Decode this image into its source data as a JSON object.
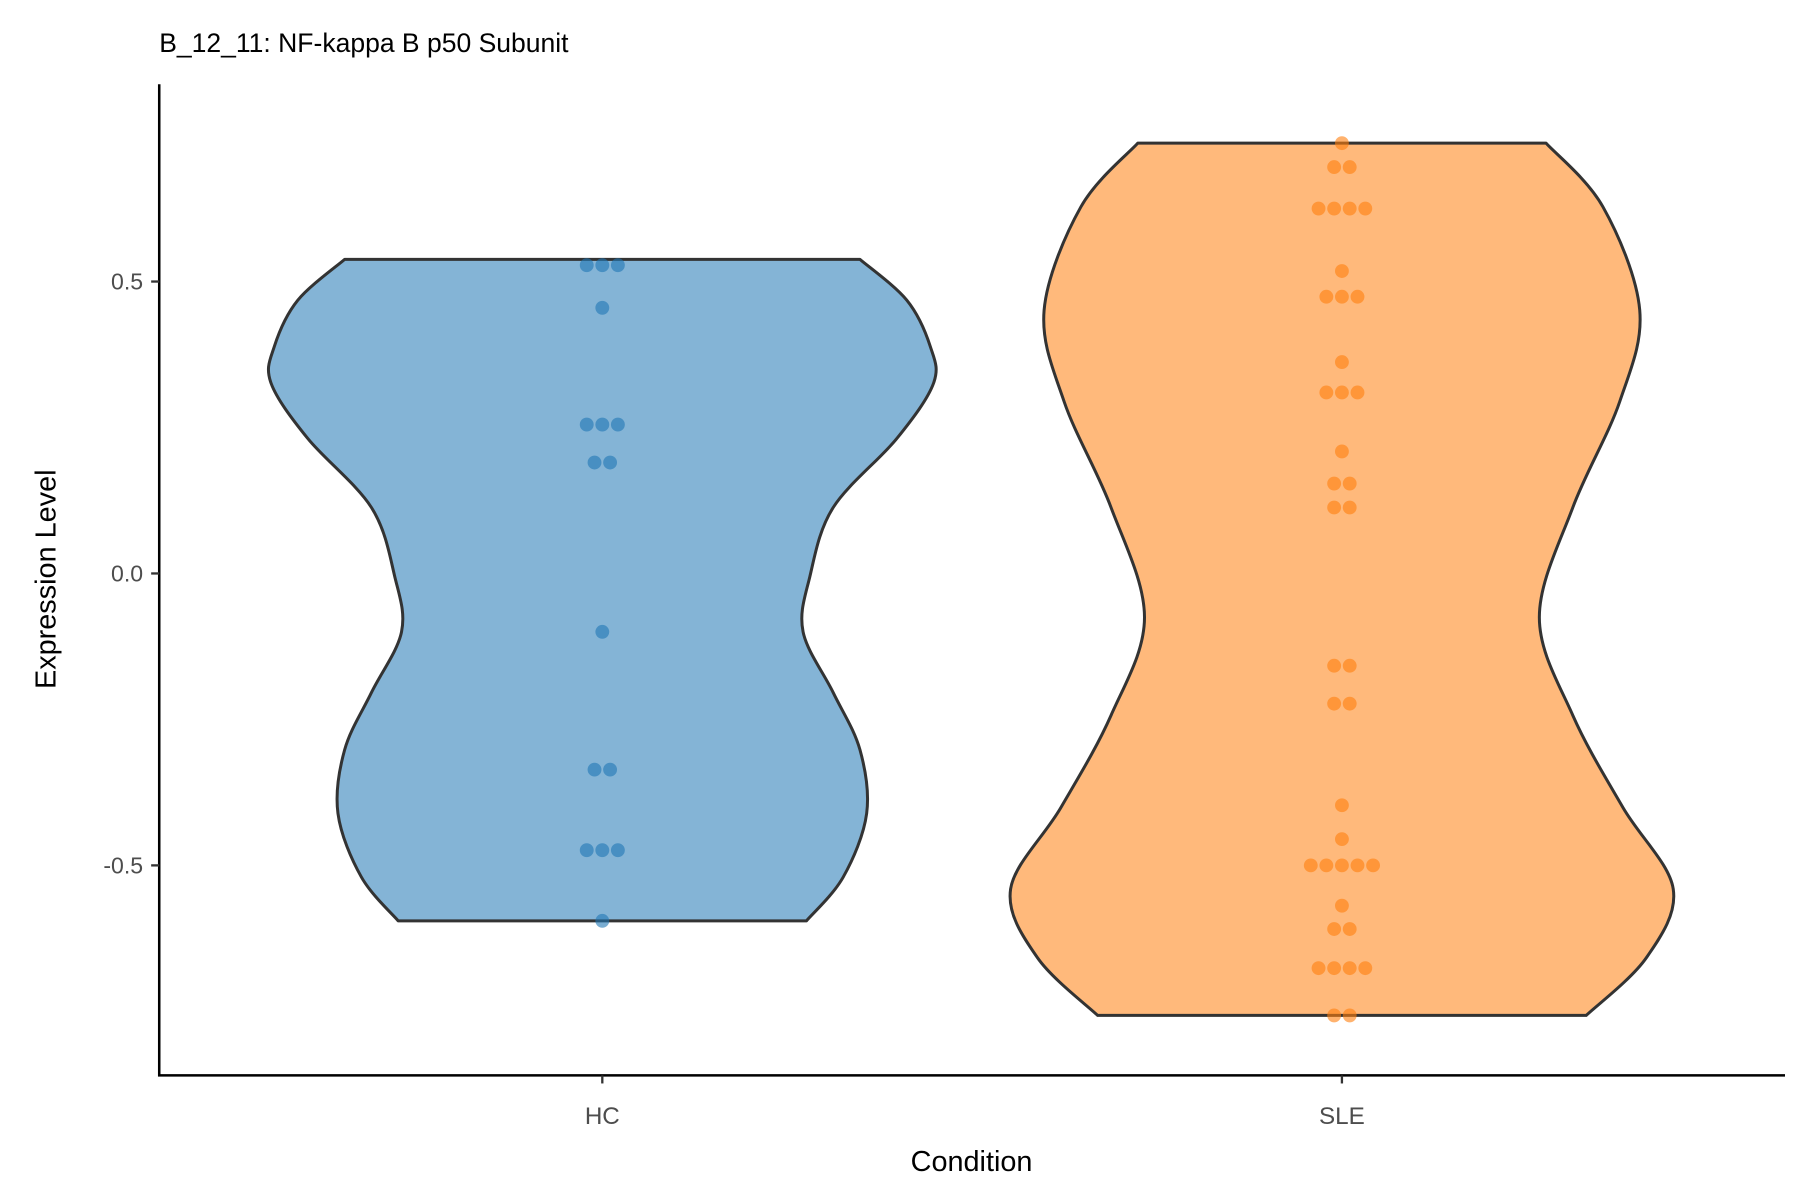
{
  "chart_data": {
    "type": "violin",
    "title": "B_12_11: NF-kappa B p50 Subunit",
    "xlabel": "Condition",
    "ylabel": "Expression Level",
    "ylim": [
      -0.86,
      0.83
    ],
    "yticks": [
      0.5,
      0.0,
      -0.5
    ],
    "ytick_labels": [
      "0.5",
      "0.0",
      "-0.5"
    ],
    "grid": false,
    "categories": [
      "HC",
      "SLE"
    ],
    "series": [
      {
        "name": "HC",
        "fill": "#1f77b4",
        "point_color": "#1f77b4",
        "points": [
          0.528,
          0.528,
          0.528,
          0.455,
          0.255,
          0.255,
          0.255,
          0.19,
          0.19,
          -0.1,
          -0.336,
          -0.336,
          -0.474,
          -0.474,
          -0.474,
          -0.595
        ],
        "density_profile": [
          [
            0.538,
            0.77
          ],
          [
            0.468,
            0.91
          ],
          [
            0.389,
            0.98
          ],
          [
            0.326,
            0.99
          ],
          [
            0.231,
            0.88
          ],
          [
            0.113,
            0.69
          ],
          [
            -0.006,
            0.62
          ],
          [
            -0.1,
            0.6
          ],
          [
            -0.204,
            0.69
          ],
          [
            -0.302,
            0.77
          ],
          [
            -0.411,
            0.79
          ],
          [
            -0.52,
            0.72
          ],
          [
            -0.595,
            0.61
          ]
        ]
      },
      {
        "name": "SLE",
        "fill": "#ff7f0e",
        "point_color": "#ff7f0e",
        "points": [
          0.737,
          0.696,
          0.696,
          0.625,
          0.625,
          0.625,
          0.625,
          0.518,
          0.474,
          0.474,
          0.474,
          0.362,
          0.31,
          0.31,
          0.31,
          0.209,
          0.154,
          0.154,
          0.113,
          0.113,
          -0.158,
          -0.158,
          -0.223,
          -0.223,
          -0.397,
          -0.455,
          -0.5,
          -0.5,
          -0.5,
          -0.5,
          -0.5,
          -0.569,
          -0.609,
          -0.609,
          -0.676,
          -0.676,
          -0.676,
          -0.676,
          -0.757,
          -0.757
        ],
        "density_profile": [
          [
            0.737,
            0.61
          ],
          [
            0.628,
            0.78
          ],
          [
            0.451,
            0.89
          ],
          [
            0.294,
            0.83
          ],
          [
            0.113,
            0.69
          ],
          [
            -0.075,
            0.59
          ],
          [
            -0.243,
            0.69
          ],
          [
            -0.401,
            0.84
          ],
          [
            -0.54,
            0.99
          ],
          [
            -0.658,
            0.91
          ],
          [
            -0.757,
            0.73
          ]
        ]
      }
    ]
  }
}
